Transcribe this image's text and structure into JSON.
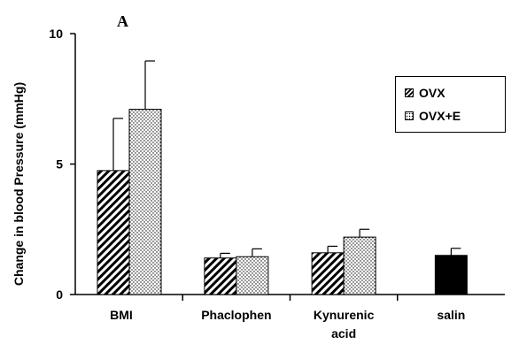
{
  "panel_label": "A",
  "chart_data": {
    "type": "bar",
    "ylabel": "Change in blood Pressure (mmHg)",
    "xlabel": "",
    "ylim": [
      0,
      10
    ],
    "yticks": [
      "0",
      "5",
      "10"
    ],
    "grid": false,
    "legend_position": "right",
    "series": [
      {
        "name": "OVX",
        "pattern": "diagonal-hatch",
        "values": [
          4.75,
          1.4,
          1.6,
          null
        ],
        "errors": [
          2.0,
          0.18,
          0.25,
          null
        ]
      },
      {
        "name": "OVX+E",
        "pattern": "dotted",
        "values": [
          7.1,
          1.45,
          2.2,
          null
        ],
        "errors": [
          1.85,
          0.3,
          0.3,
          null
        ]
      },
      {
        "name": "",
        "pattern": "solid-black",
        "values": [
          null,
          null,
          null,
          1.5
        ],
        "errors": [
          null,
          null,
          null,
          0.27
        ]
      }
    ],
    "categories": [
      "BMI",
      "Phaclophen",
      "Kynurenic acid",
      "salin"
    ],
    "category_lines": [
      [
        "BMI"
      ],
      [
        "Phaclophen"
      ],
      [
        "Kynurenic",
        "acid"
      ],
      [
        "salin"
      ]
    ],
    "colors": {
      "bar_fill": "#ffffff",
      "solid": "#000000",
      "axis": "#000000"
    }
  }
}
